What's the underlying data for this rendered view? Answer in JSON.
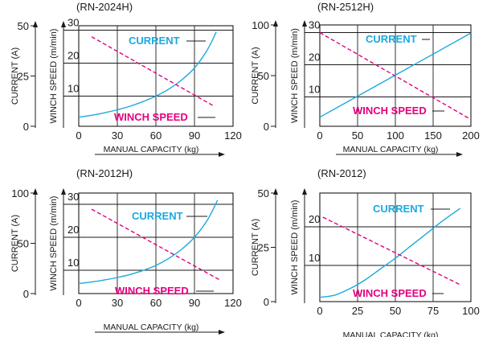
{
  "colors": {
    "current": "#1ba9df",
    "winch_speed": "#e3007f",
    "grid": "#1a1a1a"
  },
  "chart_data": [
    {
      "type": "line",
      "title": "(RN-2024H)",
      "xlabel": "MANUAL CAPACITY (kg)",
      "ylabel_left": "CURRENT (A)",
      "ylabel_right": "WINCH SPEED (m/min)",
      "xlim": [
        0,
        120
      ],
      "xticks": [
        0,
        30,
        60,
        90,
        120
      ],
      "current_axis": {
        "ylim": [
          0,
          50
        ],
        "ticks": [
          0,
          25,
          50
        ]
      },
      "speed_axis": {
        "ticks": [
          10,
          20,
          30
        ]
      },
      "grid": true,
      "series": [
        {
          "name": "CURRENT",
          "axis": "current",
          "style": "solid",
          "color": "#1ba9df",
          "x": [
            0,
            10,
            20,
            30,
            40,
            50,
            60,
            70,
            80,
            90,
            100,
            107
          ],
          "y": [
            4.5,
            5.5,
            6.7,
            8.2,
            10,
            12.3,
            15,
            18.5,
            23,
            29,
            38,
            47
          ]
        },
        {
          "name": "WINCH SPEED",
          "axis": "speed",
          "style": "dashed",
          "color": "#e3007f",
          "x": [
            10,
            105
          ],
          "y": [
            28,
            7
          ]
        }
      ]
    },
    {
      "type": "line",
      "title": "(RN-2512H)",
      "xlabel": "MANUAL CAPACITY (kg)",
      "ylabel_left": "CURRENT (A)",
      "ylabel_right": "WINCH SPEED (m/min)",
      "xlim": [
        0,
        200
      ],
      "xticks": [
        0,
        50,
        100,
        150,
        200
      ],
      "current_axis": {
        "ylim": [
          0,
          100
        ],
        "ticks": [
          0,
          50,
          100
        ]
      },
      "speed_axis": {
        "ticks": [
          10,
          20,
          30
        ]
      },
      "grid": true,
      "series": [
        {
          "name": "CURRENT",
          "axis": "current",
          "style": "solid",
          "color": "#1ba9df",
          "x": [
            0,
            200
          ],
          "y": [
            9,
            92
          ]
        },
        {
          "name": "WINCH SPEED",
          "axis": "speed",
          "style": "dashed",
          "color": "#e3007f",
          "x": [
            0,
            200
          ],
          "y": [
            30,
            3
          ]
        }
      ]
    },
    {
      "type": "line",
      "title": "(RN-2012H)",
      "xlabel": "MANUAL CAPACITY (kg)",
      "ylabel_left": "CURRENT (A)",
      "ylabel_right": "WINCH SPEED (m/min)",
      "xlim": [
        0,
        120
      ],
      "xticks": [
        0,
        30,
        60,
        90,
        120
      ],
      "current_axis": {
        "ylim": [
          0,
          100
        ],
        "ticks": [
          0,
          50,
          100
        ]
      },
      "speed_axis": {
        "ticks": [
          10,
          20,
          30
        ]
      },
      "grid": true,
      "series": [
        {
          "name": "CURRENT",
          "axis": "current",
          "style": "solid",
          "color": "#1ba9df",
          "x": [
            0,
            10,
            20,
            30,
            40,
            50,
            60,
            70,
            80,
            90,
            100,
            108
          ],
          "y": [
            10,
            11.5,
            13.5,
            16,
            19,
            23,
            28,
            35,
            44,
            56,
            73,
            93
          ]
        },
        {
          "name": "WINCH SPEED",
          "axis": "speed",
          "style": "dashed",
          "color": "#e3007f",
          "x": [
            10,
            110
          ],
          "y": [
            28.5,
            7
          ]
        }
      ]
    },
    {
      "type": "line",
      "title": "(RN-2012)",
      "xlabel": "MANUAL CAPACITY (kg)",
      "ylabel_left": "CURRENT (A)",
      "ylabel_right": "WINCH SPEED (m/min)",
      "xlim": [
        0,
        100
      ],
      "xticks": [
        0,
        25,
        50,
        75,
        100
      ],
      "current_axis": {
        "ylim": [
          0,
          50
        ],
        "ticks": [
          0,
          25,
          50
        ]
      },
      "speed_axis": {
        "ticks": [
          10,
          20
        ]
      },
      "grid": true,
      "series": [
        {
          "name": "CURRENT",
          "axis": "current",
          "style": "solid",
          "color": "#1ba9df",
          "x": [
            0,
            10,
            20,
            30,
            40,
            50,
            60,
            70,
            80,
            93
          ],
          "y": [
            2,
            3,
            6,
            10,
            15,
            20,
            25.5,
            31,
            36.5,
            43
          ]
        },
        {
          "name": "WINCH SPEED",
          "axis": "speed",
          "style": "dashed",
          "color": "#e3007f",
          "x": [
            2,
            93
          ],
          "y": [
            22.5,
            5
          ]
        }
      ]
    }
  ]
}
